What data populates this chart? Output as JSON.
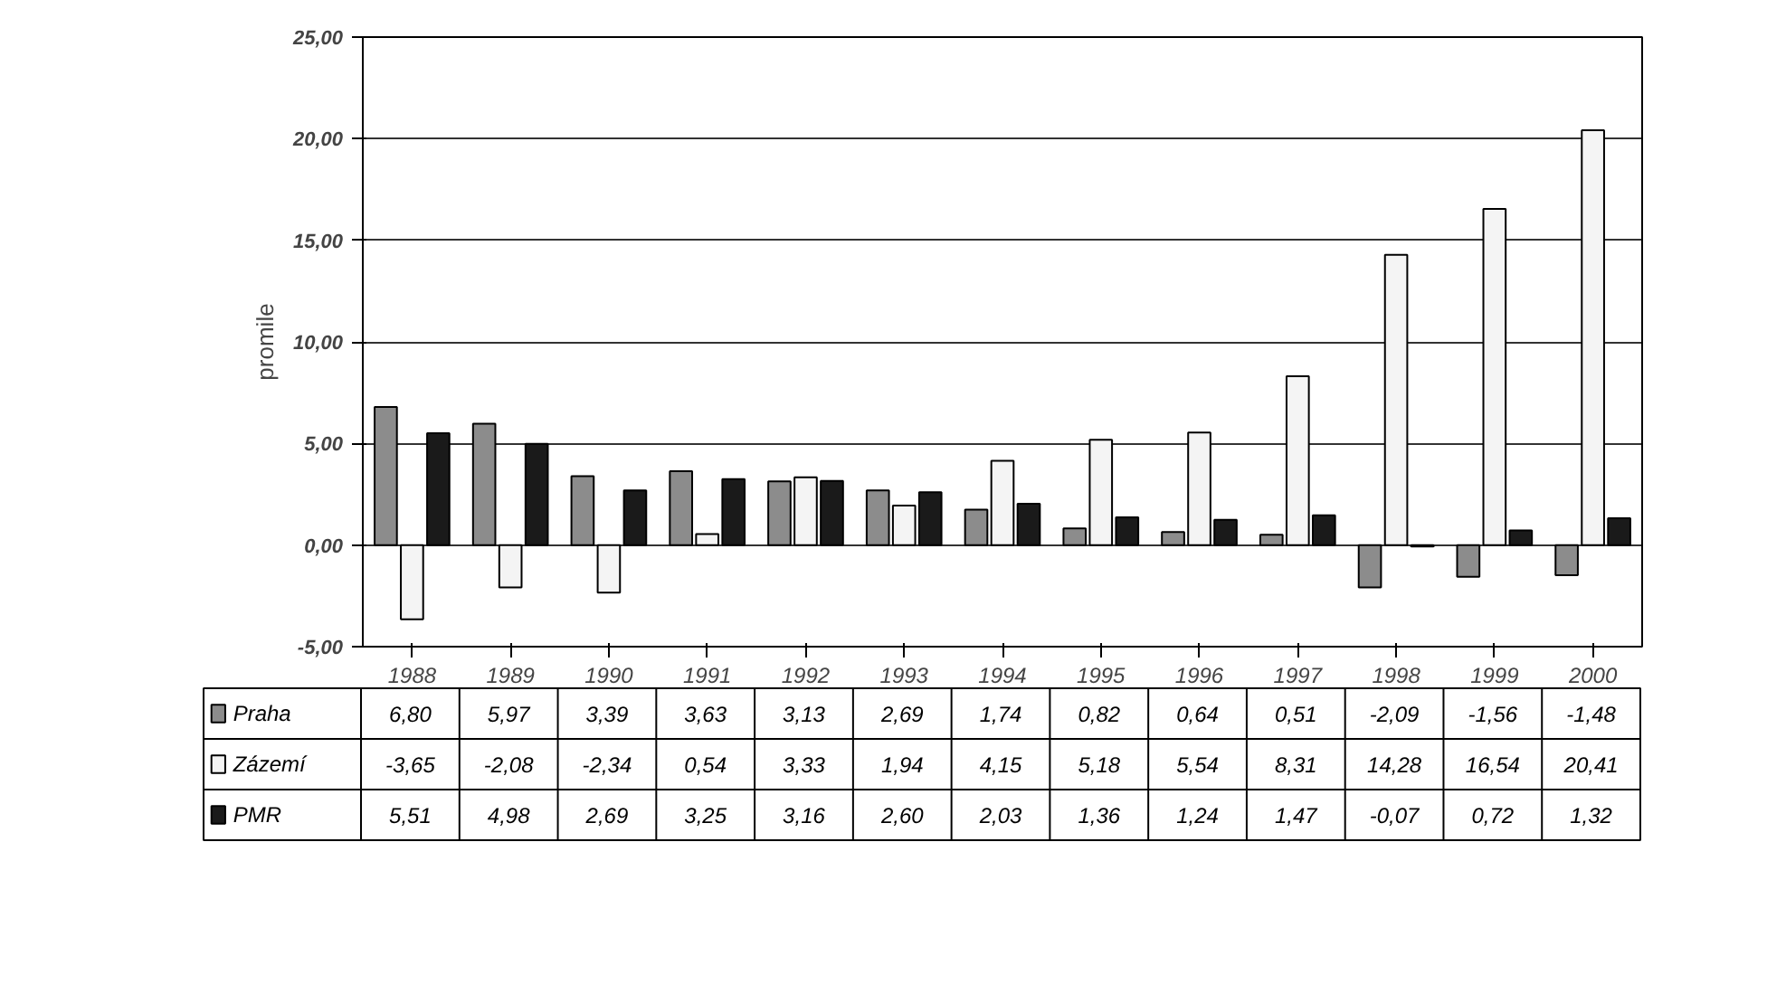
{
  "chart_data": {
    "type": "bar",
    "ylabel": "promile",
    "categories": [
      "1988",
      "1989",
      "1990",
      "1991",
      "1992",
      "1993",
      "1994",
      "1995",
      "1996",
      "1997",
      "1998",
      "1999",
      "2000"
    ],
    "series": [
      {
        "name": "Praha",
        "color": "#8c8c8c",
        "values": [
          6.8,
          5.97,
          3.39,
          3.63,
          3.13,
          2.69,
          1.74,
          0.82,
          0.64,
          0.51,
          -2.09,
          -1.56,
          -1.48
        ],
        "value_labels": [
          "6,80",
          "5,97",
          "3,39",
          "3,63",
          "3,13",
          "2,69",
          "1,74",
          "0,82",
          "0,64",
          "0,51",
          "-2,09",
          "-1,56",
          "-1,48"
        ]
      },
      {
        "name": "Zázemí",
        "color": "#f4f4f4",
        "values": [
          -3.65,
          -2.08,
          -2.34,
          0.54,
          3.33,
          1.94,
          4.15,
          5.18,
          5.54,
          8.31,
          14.28,
          16.54,
          20.41
        ],
        "value_labels": [
          "-3,65",
          "-2,08",
          "-2,34",
          "0,54",
          "3,33",
          "1,94",
          "4,15",
          "5,18",
          "5,54",
          "8,31",
          "14,28",
          "16,54",
          "20,41"
        ]
      },
      {
        "name": "PMR",
        "color": "#1a1a1a",
        "values": [
          5.51,
          4.98,
          2.69,
          3.25,
          3.16,
          2.6,
          2.03,
          1.36,
          1.24,
          1.47,
          -0.07,
          0.72,
          1.32
        ],
        "value_labels": [
          "5,51",
          "4,98",
          "2,69",
          "3,25",
          "3,16",
          "2,60",
          "2,03",
          "1,36",
          "1,24",
          "1,47",
          "-0,07",
          "0,72",
          "1,32"
        ]
      }
    ],
    "ylim": [
      -5,
      25
    ],
    "yticks": [
      {
        "value": -5,
        "label": "-5,00"
      },
      {
        "value": 0,
        "label": "0,00"
      },
      {
        "value": 5,
        "label": "5,00"
      },
      {
        "value": 10,
        "label": "10,00"
      },
      {
        "value": 15,
        "label": "15,00"
      },
      {
        "value": 20,
        "label": "20,00"
      },
      {
        "value": 25,
        "label": "25,00"
      }
    ],
    "grid": "y",
    "legend": "bottom"
  }
}
